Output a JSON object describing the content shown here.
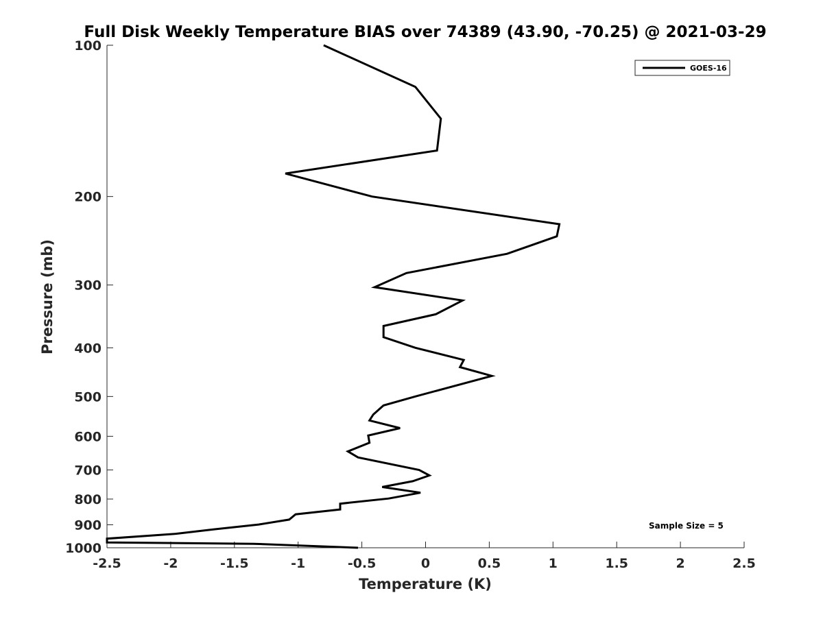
{
  "chart_data": {
    "type": "line",
    "title": "Full Disk Weekly Temperature BIAS over 74389 (43.90, -70.25) @ 2021-03-29",
    "xlabel": "Temperature (K)",
    "ylabel": "Pressure (mb)",
    "xlim": [
      -2.5,
      2.5
    ],
    "ylim": [
      100,
      1000
    ],
    "y_scale": "log",
    "y_reversed": true,
    "x_ticks": [
      -2.5,
      -2,
      -1.5,
      -1,
      -0.5,
      0,
      0.5,
      1,
      1.5,
      2,
      2.5
    ],
    "x_tick_labels": [
      "-2.5",
      "-2",
      "-1.5",
      "-1",
      "-0.5",
      "0",
      "0.5",
      "1",
      "1.5",
      "2",
      "2.5"
    ],
    "y_ticks": [
      100,
      200,
      300,
      400,
      500,
      600,
      700,
      800,
      900,
      1000
    ],
    "y_tick_labels": [
      "100",
      "200",
      "300",
      "400",
      "500",
      "600",
      "700",
      "800",
      "900",
      "1000"
    ],
    "grid": false,
    "legend_position": "top-right",
    "series": [
      {
        "name": "GOES-16",
        "color": "#000000",
        "points": [
          [
            -0.8,
            100
          ],
          [
            -0.08,
            121
          ],
          [
            0.12,
            140
          ],
          [
            0.09,
            162
          ],
          [
            -1.1,
            180
          ],
          [
            -0.42,
            200
          ],
          [
            1.05,
            227
          ],
          [
            1.03,
            240
          ],
          [
            0.64,
            260
          ],
          [
            -0.15,
            284
          ],
          [
            -0.4,
            303
          ],
          [
            0.29,
            322
          ],
          [
            0.08,
            343
          ],
          [
            -0.33,
            362
          ],
          [
            -0.33,
            381
          ],
          [
            -0.08,
            400
          ],
          [
            0.3,
            423
          ],
          [
            0.27,
            437
          ],
          [
            0.52,
            455
          ],
          [
            -0.08,
            500
          ],
          [
            -0.33,
            521
          ],
          [
            -0.41,
            543
          ],
          [
            -0.44,
            558
          ],
          [
            -0.2,
            578
          ],
          [
            -0.45,
            598
          ],
          [
            -0.44,
            618
          ],
          [
            -0.61,
            643
          ],
          [
            -0.53,
            661
          ],
          [
            -0.05,
            700
          ],
          [
            0.03,
            718
          ],
          [
            -0.1,
            737
          ],
          [
            -0.34,
            757
          ],
          [
            -0.04,
            777
          ],
          [
            -0.29,
            798
          ],
          [
            -0.67,
            817
          ],
          [
            -0.67,
            839
          ],
          [
            -1.02,
            858
          ],
          [
            -1.07,
            879
          ],
          [
            -1.31,
            899
          ],
          [
            -1.66,
            919
          ],
          [
            -1.96,
            938
          ],
          [
            -2.5,
            959
          ],
          [
            -2.5,
            976
          ],
          [
            -1.35,
            982
          ],
          [
            -0.53,
            1000
          ]
        ]
      }
    ],
    "annotation": "Sample Size = 5"
  }
}
